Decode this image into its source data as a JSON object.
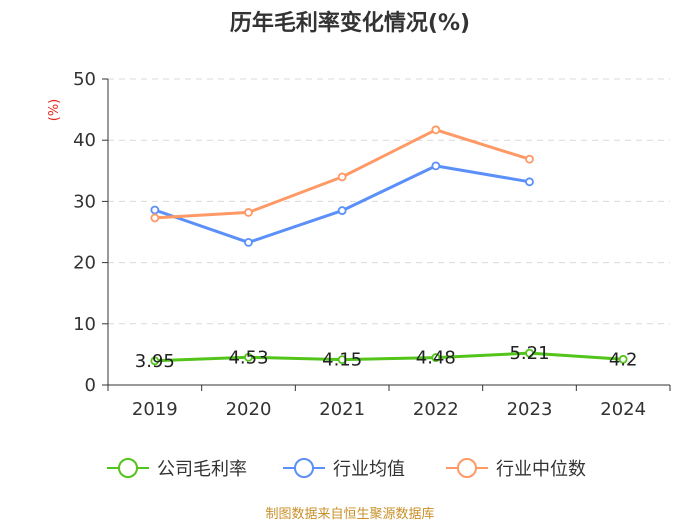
{
  "chart_data": {
    "type": "line",
    "title": "历年毛利率变化情况(%)",
    "ylabel": "(%)",
    "xlabel": "",
    "categories": [
      "2019",
      "2020",
      "2021",
      "2022",
      "2023",
      "2024"
    ],
    "ylim": [
      0,
      50
    ],
    "yticks": [
      0,
      10,
      20,
      30,
      40,
      50
    ],
    "grid": true,
    "legend_position": "bottom",
    "series": [
      {
        "name": "公司毛利率",
        "color": "#52c41a",
        "values": [
          3.95,
          4.53,
          4.15,
          4.48,
          5.21,
          4.2
        ],
        "labels": [
          "3.95",
          "4.53",
          "4.15",
          "4.48",
          "5.21",
          "4.2"
        ]
      },
      {
        "name": "行业均值",
        "color": "#5b8ff9",
        "values": [
          28.6,
          23.3,
          28.5,
          35.8,
          33.2,
          null
        ]
      },
      {
        "name": "行业中位数",
        "color": "#ff9966",
        "values": [
          27.3,
          28.2,
          34.0,
          41.7,
          36.9,
          null
        ]
      }
    ],
    "source": "制图数据来自恒生聚源数据库"
  }
}
